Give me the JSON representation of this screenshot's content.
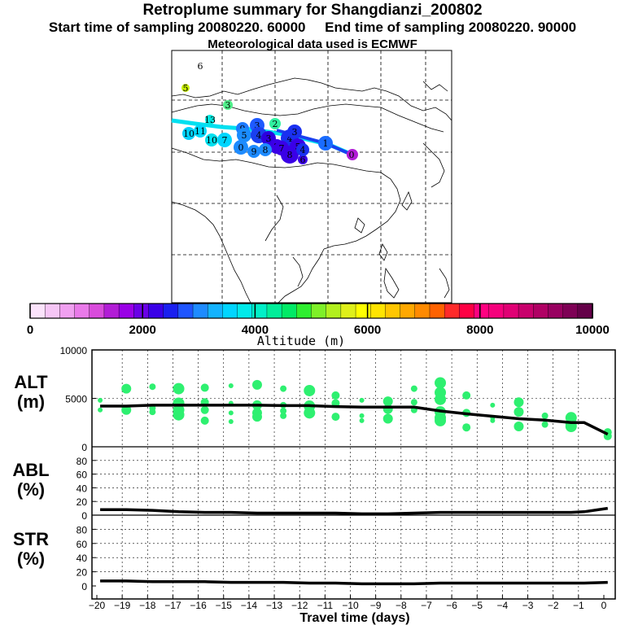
{
  "header": {
    "title": "Retroplume summary for Shangdianzi_200802",
    "subtitle_start": "Start time of sampling 20080220. 60000",
    "subtitle_end": "End time of sampling 20080220. 90000",
    "met_line": "Meteorological data used is ECMWF"
  },
  "map": {
    "plume_labels": [
      "6",
      "5",
      "3",
      "13",
      "2",
      "3",
      "11",
      "10",
      "9",
      "7",
      "10",
      "5",
      "4",
      "3",
      "4",
      "3",
      "2",
      "1",
      "1",
      "0",
      "9",
      "8",
      "7",
      "8",
      "5",
      "6",
      "4",
      "0"
    ],
    "station_marker": "0"
  },
  "colorbar": {
    "title": "Altitude (m)",
    "tick_labels": [
      "0",
      "2000",
      "4000",
      "6000",
      "8000",
      "10000"
    ],
    "min": 0,
    "max": 10000,
    "colors": [
      "#fbe3fb",
      "#f6c6f6",
      "#f0a0f0",
      "#e97ae9",
      "#d94bdc",
      "#b21dd6",
      "#9a00e6",
      "#6a00e6",
      "#3a00e8",
      "#1a20f0",
      "#1f55ff",
      "#1e8bff",
      "#14b3ff",
      "#00d5ff",
      "#00eaea",
      "#00f0c8",
      "#00ee99",
      "#00ea66",
      "#2fee30",
      "#7ef028",
      "#b2f01e",
      "#dff01a",
      "#ffff00",
      "#ffe400",
      "#ffc600",
      "#ffa800",
      "#ff8a00",
      "#ff6200",
      "#ff2a2a",
      "#ff0044",
      "#ff0080",
      "#f5007c",
      "#e00074",
      "#c8006c",
      "#b00064",
      "#980060",
      "#7e0055",
      "#640048"
    ]
  },
  "panels": {
    "alt_label": [
      "ALT",
      "(m)"
    ],
    "abl_label": [
      "ABL",
      "(%)"
    ],
    "str_label": [
      "STR",
      "(%)"
    ],
    "alt_ticks": [
      "0",
      "5000",
      "10000"
    ],
    "pct_ticks": [
      "0",
      "20",
      "40",
      "60",
      "80"
    ],
    "x_ticks": [
      "−20",
      "−19",
      "−18",
      "−17",
      "−16",
      "−15",
      "−14",
      "−13",
      "−12",
      "−11",
      "−10",
      "−9",
      "−8",
      "−7",
      "−6",
      "−5",
      "−4",
      "−3",
      "−2",
      "−1",
      "0"
    ],
    "xlabel": "Travel time (days)"
  },
  "chart_data": [
    {
      "type": "line",
      "title": "ALT (m)",
      "xlabel": "Travel time (days)",
      "ylabel": "ALT (m)",
      "xlim": [
        -20,
        0
      ],
      "ylim": [
        0,
        10000
      ],
      "x": [
        -19.5,
        -18.5,
        -17.5,
        -16.5,
        -15.5,
        -14.5,
        -13.5,
        -12.5,
        -11.5,
        -10.5,
        -9.5,
        -8.5,
        -7.5,
        -6.5,
        -5.5,
        -4.5,
        -3.5,
        -2.5,
        -1.5,
        -1.0,
        -0.1
      ],
      "series": [
        {
          "name": "mean altitude",
          "values": [
            4200,
            4200,
            4300,
            4300,
            4300,
            4300,
            4300,
            4250,
            4250,
            4150,
            4100,
            4100,
            4100,
            3700,
            3400,
            3150,
            2900,
            2750,
            2500,
            2500,
            1300
          ]
        }
      ],
      "scatter": [
        {
          "x": -19.5,
          "values": [
            4800,
            3800
          ]
        },
        {
          "x": -18.5,
          "values": [
            6000,
            3800
          ]
        },
        {
          "x": -17.5,
          "values": [
            6200,
            4000,
            3600
          ]
        },
        {
          "x": -16.5,
          "values": [
            6000,
            4500,
            3800,
            3300
          ]
        },
        {
          "x": -15.5,
          "values": [
            6100,
            4600,
            3800,
            2700
          ]
        },
        {
          "x": -14.5,
          "values": [
            6300,
            4500,
            3500,
            2600
          ]
        },
        {
          "x": -13.5,
          "values": [
            6400,
            4300,
            3500,
            3100
          ]
        },
        {
          "x": -12.5,
          "values": [
            6000,
            4300,
            3700,
            3200
          ]
        },
        {
          "x": -11.5,
          "values": [
            5800,
            4200,
            3500
          ]
        },
        {
          "x": -10.5,
          "values": [
            5300,
            4500,
            3100
          ]
        },
        {
          "x": -9.5,
          "values": [
            4800,
            3200,
            2700
          ]
        },
        {
          "x": -8.5,
          "values": [
            4700,
            3900,
            2900
          ]
        },
        {
          "x": -7.5,
          "values": [
            6000,
            4600,
            3800
          ]
        },
        {
          "x": -6.5,
          "values": [
            6600,
            5600,
            4900,
            3600,
            3000,
            2700
          ]
        },
        {
          "x": -5.5,
          "values": [
            5300,
            3500,
            2000
          ]
        },
        {
          "x": -4.5,
          "values": [
            4300,
            3000,
            2700
          ]
        },
        {
          "x": -3.5,
          "values": [
            4600,
            3600,
            2100
          ]
        },
        {
          "x": -2.5,
          "values": [
            3200,
            2300
          ]
        },
        {
          "x": -1.5,
          "values": [
            3000,
            2400,
            2100
          ]
        },
        {
          "x": -0.1,
          "values": [
            1500,
            1100
          ]
        }
      ]
    },
    {
      "type": "line",
      "title": "ABL (%)",
      "xlabel": "Travel time (days)",
      "ylabel": "ABL (%)",
      "xlim": [
        -20,
        0
      ],
      "ylim": [
        0,
        100
      ],
      "x": [
        -19.5,
        -18.5,
        -17.5,
        -16.5,
        -15.5,
        -14.5,
        -13.5,
        -12.5,
        -11.5,
        -10.5,
        -9.5,
        -8.5,
        -7.5,
        -6.5,
        -5.5,
        -4.5,
        -3.5,
        -2.5,
        -1.5,
        -1.0,
        -0.1
      ],
      "series": [
        {
          "name": "ABL fraction",
          "values": [
            8,
            8,
            7,
            5,
            4,
            4,
            3,
            3,
            3,
            3,
            2,
            2,
            3,
            4,
            4,
            4,
            4,
            4,
            4,
            5,
            10
          ]
        }
      ]
    },
    {
      "type": "line",
      "title": "STR (%)",
      "xlabel": "Travel time (days)",
      "ylabel": "STR (%)",
      "xlim": [
        -20,
        0
      ],
      "ylim": [
        0,
        100
      ],
      "x": [
        -19.5,
        -18.5,
        -17.5,
        -16.5,
        -15.5,
        -14.5,
        -13.5,
        -12.5,
        -11.5,
        -10.5,
        -9.5,
        -8.5,
        -7.5,
        -6.5,
        -5.5,
        -4.5,
        -3.5,
        -2.5,
        -1.5,
        -1.0,
        -0.1
      ],
      "series": [
        {
          "name": "stratospheric fraction",
          "values": [
            7,
            7,
            6,
            6,
            6,
            5,
            5,
            5,
            4,
            4,
            3,
            3,
            3,
            4,
            4,
            4,
            4,
            4,
            4,
            4,
            5
          ]
        }
      ]
    }
  ]
}
